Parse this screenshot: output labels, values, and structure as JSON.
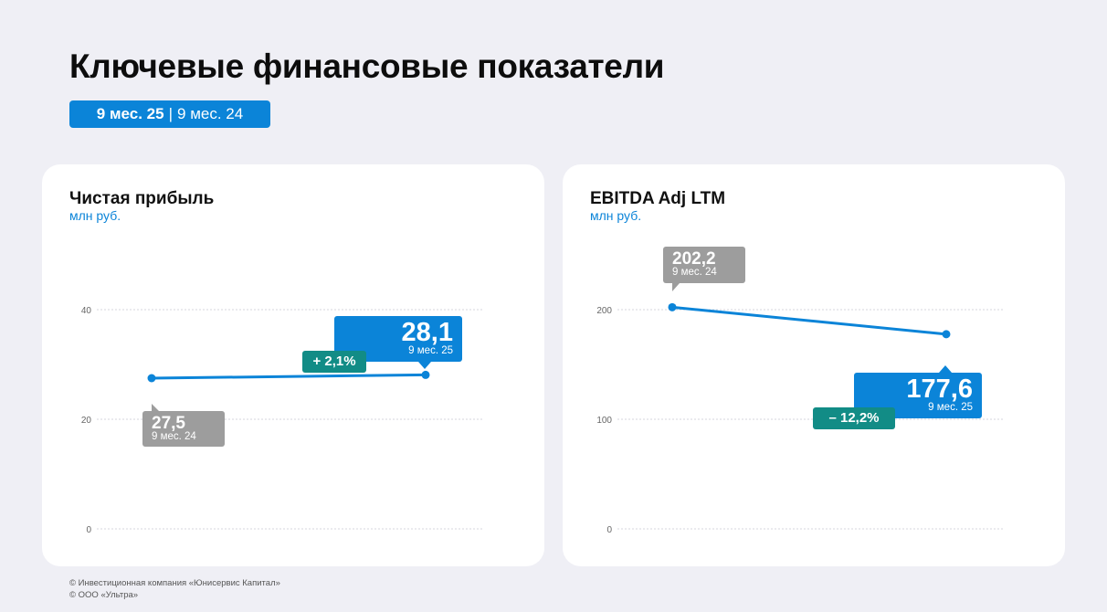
{
  "page": {
    "title": "Ключевые финансовые показатели",
    "period_toggle": {
      "active": "9 мес. 25",
      "separator": "|",
      "inactive": "9 мес. 24"
    }
  },
  "colors": {
    "accent": "#0b84d8",
    "previous": "#9d9d9d",
    "change": "#128c86",
    "background": "#efeff5"
  },
  "chart_data": [
    {
      "type": "line",
      "title": "Чистая прибыль",
      "ylabel": "млн руб.",
      "ylim": [
        0,
        40
      ],
      "y_ticks": [
        "0",
        "20",
        "40"
      ],
      "x": [
        "9 мес. 24",
        "9 мес. 25"
      ],
      "values": [
        27.5,
        28.1
      ],
      "value_labels": [
        "27,5",
        "28,1"
      ],
      "period_labels": [
        "9 мес. 24",
        "9 мес. 25"
      ],
      "change_label": "+ 2,1%",
      "grid": true,
      "legend": "none"
    },
    {
      "type": "line",
      "title": "EBITDA Adj LTM",
      "ylabel": "млн руб.",
      "ylim": [
        0,
        200
      ],
      "y_ticks": [
        "0",
        "100",
        "200"
      ],
      "x": [
        "9 мес. 24",
        "9 мес. 25"
      ],
      "values": [
        202.2,
        177.6
      ],
      "value_labels": [
        "202,2",
        "177,6"
      ],
      "period_labels": [
        "9 мес. 24",
        "9 мес. 25"
      ],
      "change_label": "– 12,2%",
      "grid": true,
      "legend": "none"
    }
  ],
  "footer": {
    "line1": "© Инвестиционная компания «Юнисервис Капитал»",
    "line2": "© ООО «Ультра»"
  }
}
